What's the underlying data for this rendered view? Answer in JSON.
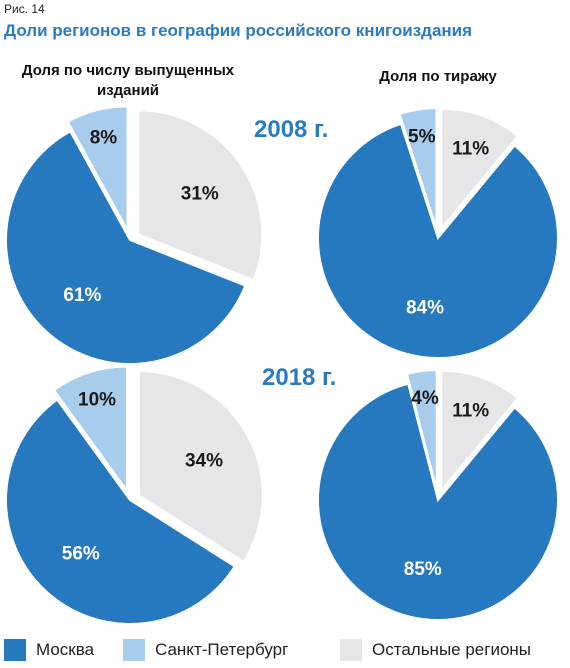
{
  "figure_label": "Рис. 14",
  "title": "Доли регионов в географии российского книгоиздания",
  "columns": {
    "left": "Доля по числу выпущенных изданий",
    "right": "Доля по тиражу"
  },
  "colors": {
    "moscow": "#2678bf",
    "spb": "#a8ccec",
    "other": "#e6e6e8"
  },
  "legend": [
    {
      "key": "moscow",
      "label": "Москва"
    },
    {
      "key": "spb",
      "label": "Санкт-Петербург"
    },
    {
      "key": "other",
      "label": "Остальные регионы"
    }
  ],
  "chart_data": [
    {
      "type": "pie",
      "year": "2008 г.",
      "measure": "Доля по числу выпущенных изданий",
      "slices": [
        {
          "key": "moscow",
          "label": "Москва",
          "value": 61,
          "text": "61%"
        },
        {
          "key": "spb",
          "label": "Санкт-Петербург",
          "value": 8,
          "text": "8%"
        },
        {
          "key": "other",
          "label": "Остальные регионы",
          "value": 31,
          "text": "31%"
        }
      ]
    },
    {
      "type": "pie",
      "year": "2008 г.",
      "measure": "Доля по тиражу",
      "slices": [
        {
          "key": "moscow",
          "label": "Москва",
          "value": 84,
          "text": "84%"
        },
        {
          "key": "spb",
          "label": "Санкт-Петербург",
          "value": 5,
          "text": "5%"
        },
        {
          "key": "other",
          "label": "Остальные регионы",
          "value": 11,
          "text": "11%"
        }
      ]
    },
    {
      "type": "pie",
      "year": "2018 г.",
      "measure": "Доля по числу выпущенных изданий",
      "slices": [
        {
          "key": "moscow",
          "label": "Москва",
          "value": 56,
          "text": "56%"
        },
        {
          "key": "spb",
          "label": "Санкт-Петербург",
          "value": 10,
          "text": "10%"
        },
        {
          "key": "other",
          "label": "Остальные регионы",
          "value": 34,
          "text": "34%"
        }
      ]
    },
    {
      "type": "pie",
      "year": "2018 г.",
      "measure": "Доля по тиражу",
      "slices": [
        {
          "key": "moscow",
          "label": "Москва",
          "value": 85,
          "text": "85%"
        },
        {
          "key": "spb",
          "label": "Санкт-Петербург",
          "value": 4,
          "text": "4%"
        },
        {
          "key": "other",
          "label": "Остальные регионы",
          "value": 11,
          "text": "11%"
        }
      ]
    }
  ]
}
